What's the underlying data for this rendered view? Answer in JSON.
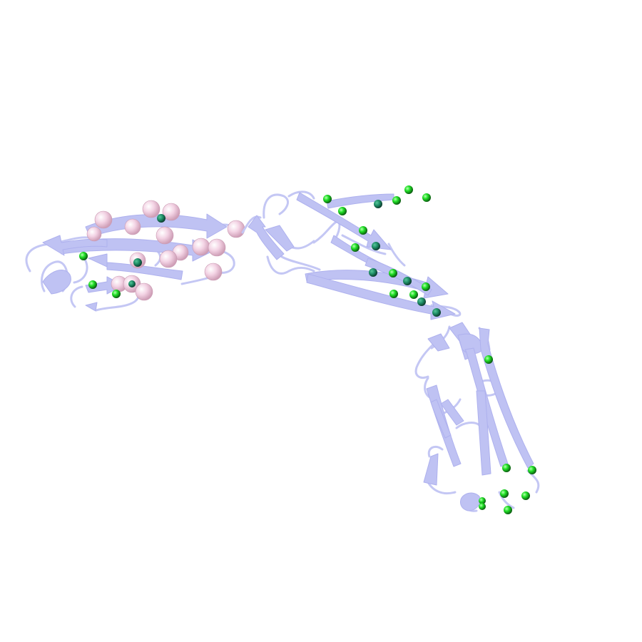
{
  "scene": {
    "background": "#ffffff",
    "ribbon_color": "#bfc2f3",
    "ribbon_edge": "#a9acec",
    "green_atom_color": "#22e02a",
    "pink_atom_color": "#f1cfe0"
  }
}
